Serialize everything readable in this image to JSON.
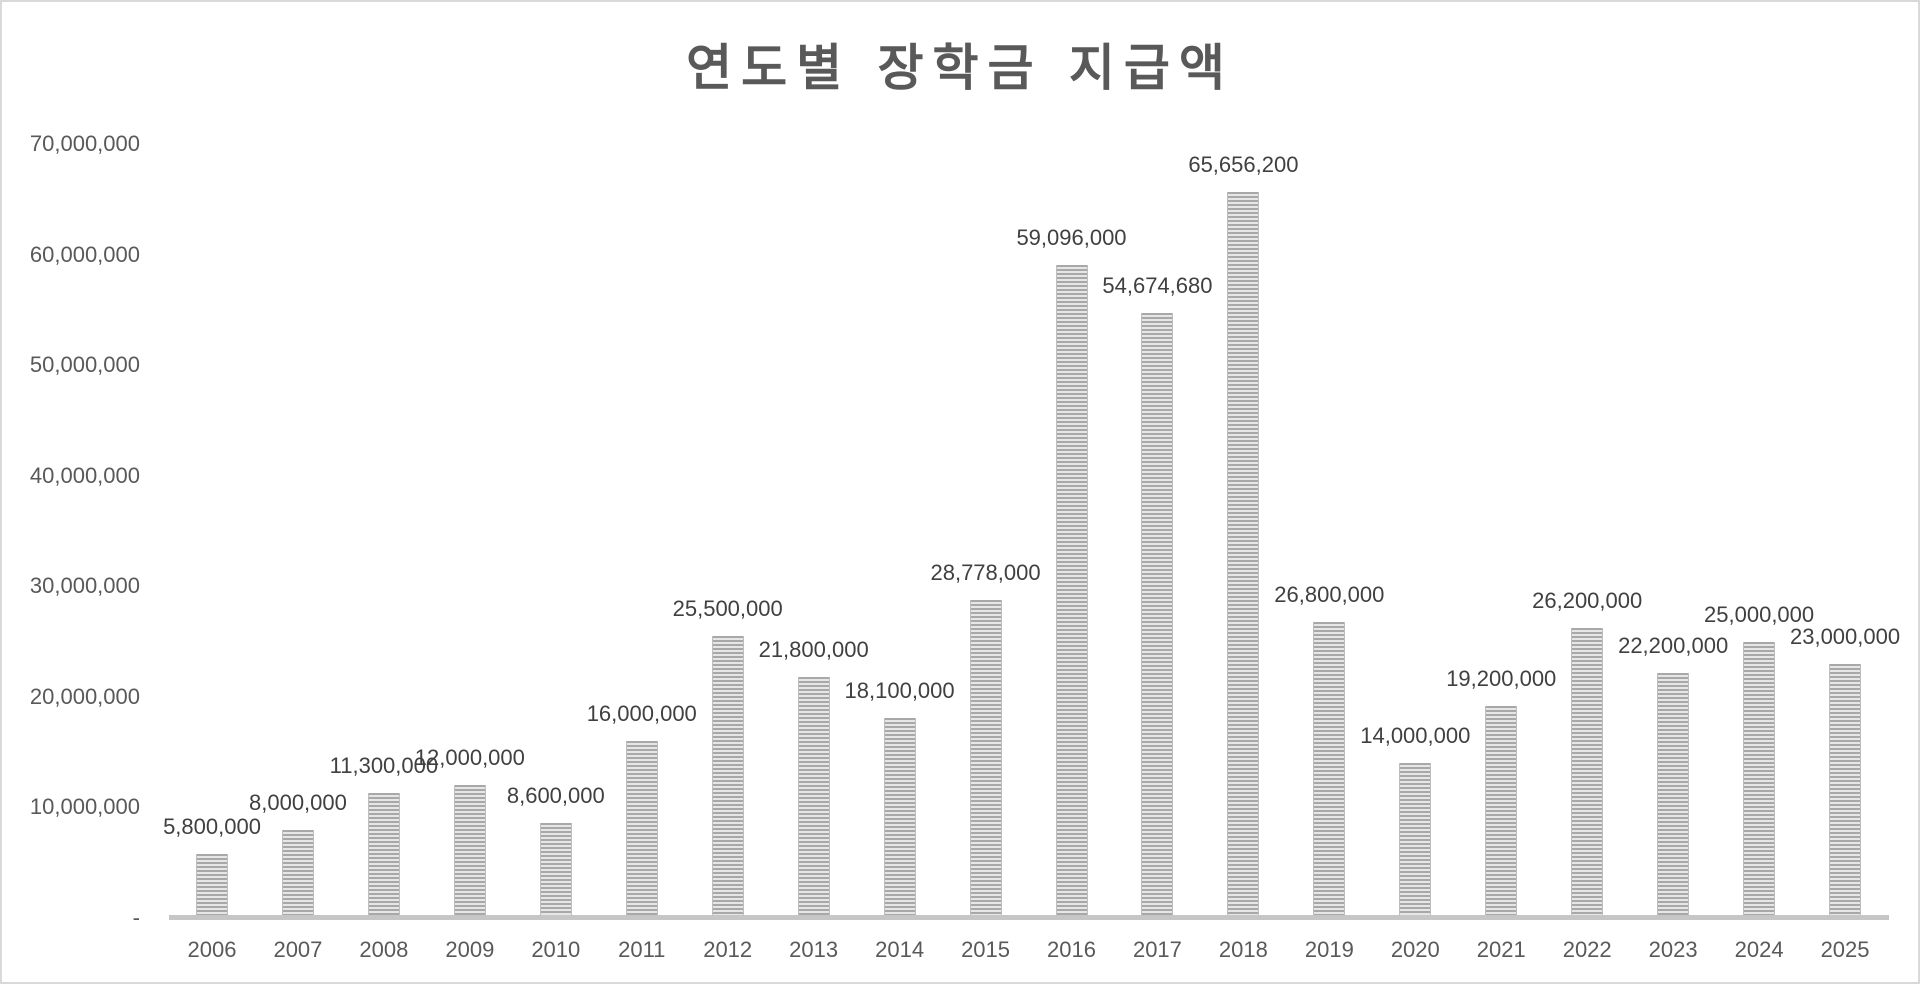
{
  "chart_data": {
    "type": "bar",
    "title": "연도별 장학금 지급액",
    "xlabel": "",
    "ylabel": "",
    "ylim": [
      0,
      70000000
    ],
    "grid": false,
    "legend": null,
    "categories": [
      "2006",
      "2007",
      "2008",
      "2009",
      "2010",
      "2011",
      "2012",
      "2013",
      "2014",
      "2015",
      "2016",
      "2017",
      "2018",
      "2019",
      "2020",
      "2021",
      "2022",
      "2023",
      "2024",
      "2025"
    ],
    "values": [
      5800000,
      8000000,
      11300000,
      12000000,
      8600000,
      16000000,
      25500000,
      21800000,
      18100000,
      28778000,
      59096000,
      54674680,
      65656200,
      26800000,
      14000000,
      19200000,
      26200000,
      22200000,
      25000000,
      23000000
    ],
    "data_labels": [
      "5,800,000",
      "8,000,000",
      "11,300,000",
      "12,000,000",
      "8,600,000",
      "16,000,000",
      "25,500,000",
      "21,800,000",
      "18,100,000",
      "28,778,000",
      "59,096,000",
      "54,674,680",
      "65,656,200",
      "26,800,000",
      "14,000,000",
      "19,200,000",
      "26,200,000",
      "22,200,000",
      "25,000,000",
      "23,000,000"
    ],
    "y_ticks": [
      {
        "value": 0,
        "label": "-"
      },
      {
        "value": 10000000,
        "label": "10,000,000"
      },
      {
        "value": 20000000,
        "label": "20,000,000"
      },
      {
        "value": 30000000,
        "label": "30,000,000"
      },
      {
        "value": 40000000,
        "label": "40,000,000"
      },
      {
        "value": 50000000,
        "label": "50,000,000"
      },
      {
        "value": 60000000,
        "label": "60,000,000"
      },
      {
        "value": 70000000,
        "label": "70,000,000"
      }
    ],
    "colors": {
      "bar_dark": "#a8a8a8",
      "bar_light": "#e6e6e6",
      "axis": "#c6c6c6",
      "title": "#595959",
      "tick_text": "#595959",
      "label_text": "#404040"
    }
  }
}
